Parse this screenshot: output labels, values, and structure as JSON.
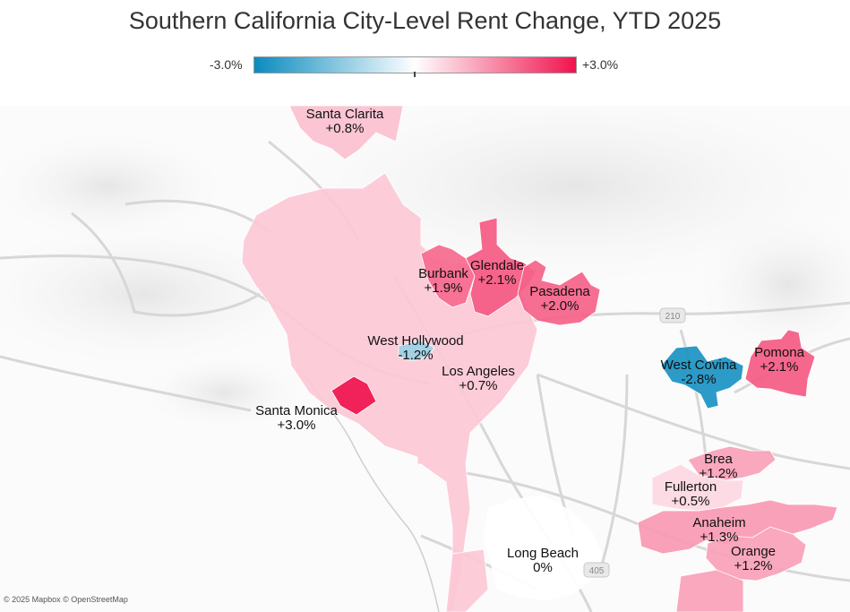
{
  "title": "Southern California City-Level Rent Change, YTD 2025",
  "legend": {
    "min_label": "-3.0%",
    "max_label": "+3.0%",
    "min_value": -3.0,
    "max_value": 3.0,
    "low_color": "#0a8bbf",
    "mid_color": "#ffffff",
    "high_color": "#f0134e"
  },
  "cities": [
    {
      "name": "Santa Clarita",
      "change_label": "+0.8%",
      "change": 0.8
    },
    {
      "name": "Glendale",
      "change_label": "+2.1%",
      "change": 2.1
    },
    {
      "name": "Burbank",
      "change_label": "+1.9%",
      "change": 1.9
    },
    {
      "name": "Pasadena",
      "change_label": "+2.0%",
      "change": 2.0
    },
    {
      "name": "West Hollywood",
      "change_label": "-1.2%",
      "change": -1.2
    },
    {
      "name": "Los Angeles",
      "change_label": "+0.7%",
      "change": 0.7
    },
    {
      "name": "Santa Monica",
      "change_label": "+3.0%",
      "change": 3.0
    },
    {
      "name": "West Covina",
      "change_label": "-2.8%",
      "change": -2.8
    },
    {
      "name": "Pomona",
      "change_label": "+2.1%",
      "change": 2.1
    },
    {
      "name": "Brea",
      "change_label": "+1.2%",
      "change": 1.2
    },
    {
      "name": "Fullerton",
      "change_label": "+0.5%",
      "change": 0.5
    },
    {
      "name": "Anaheim",
      "change_label": "+1.3%",
      "change": 1.3
    },
    {
      "name": "Orange",
      "change_label": "+1.2%",
      "change": 1.2
    },
    {
      "name": "Long Beach",
      "change_label": "0%",
      "change": 0.0
    }
  ],
  "highway_shields": [
    "210",
    "405"
  ],
  "attribution": "© 2025 Mapbox © OpenStreetMap"
}
